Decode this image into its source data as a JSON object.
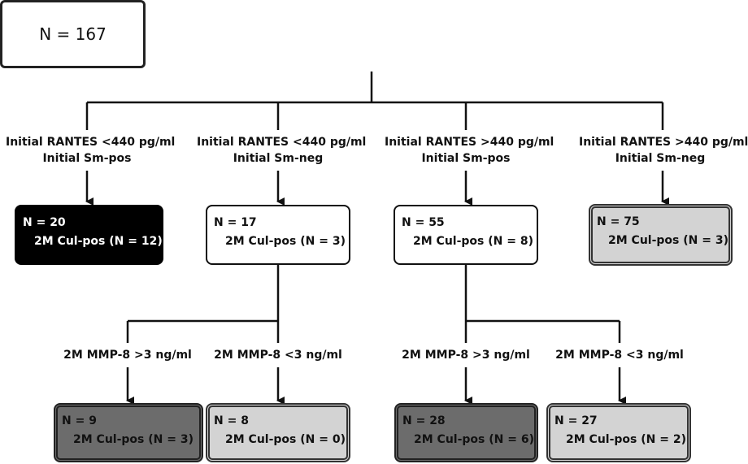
{
  "root": {
    "label": "N = 167"
  },
  "level1": [
    {
      "line1": "Initial RANTES <440 pg/ml",
      "line2": "Initial Sm-pos",
      "n": "N = 20",
      "cul": "2M Cul-pos (N = 12)"
    },
    {
      "line1": "Initial RANTES <440 pg/ml",
      "line2": "Initial Sm-neg",
      "n": "N = 17",
      "cul": "2M Cul-pos (N = 3)"
    },
    {
      "line1": "Initial RANTES >440 pg/ml",
      "line2": "Initial Sm-pos",
      "n": "N = 55",
      "cul": "2M Cul-pos (N = 8)"
    },
    {
      "line1": "Initial RANTES >440 pg/ml",
      "line2": "Initial Sm-neg",
      "n": "N = 75",
      "cul": "2M Cul-pos (N = 3)"
    }
  ],
  "level2": [
    {
      "label": "2M MMP-8 >3 ng/ml",
      "n": "N = 9",
      "cul": "2M Cul-pos (N = 3)"
    },
    {
      "label": "2M MMP-8 <3 ng/ml",
      "n": "N = 8",
      "cul": "2M Cul-pos (N = 0)"
    },
    {
      "label": "2M MMP-8 >3 ng/ml",
      "n": "N = 28",
      "cul": "2M Cul-pos (N = 6)"
    },
    {
      "label": "2M MMP-8 <3 ng/ml",
      "n": "N = 27",
      "cul": "2M Cul-pos (N = 2)"
    }
  ]
}
